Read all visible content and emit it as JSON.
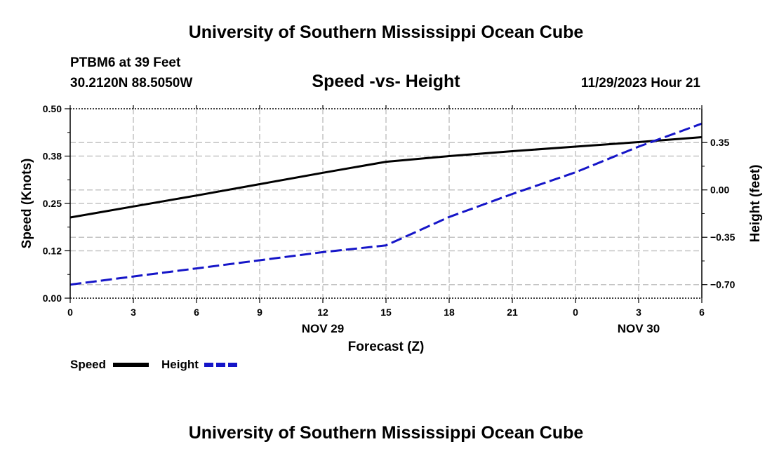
{
  "header": {
    "title": "University of Southern Mississippi Ocean Cube",
    "station": "PTBM6 at 39 Feet",
    "coords": "30.2120N  88.5050W",
    "subtitle": "Speed -vs- Height",
    "datetime": "11/29/2023 Hour 21"
  },
  "footer": {
    "title": "University of Southern Mississippi Ocean Cube"
  },
  "legend": {
    "speed_label": "Speed",
    "height_label": "Height"
  },
  "chart_data": {
    "type": "line",
    "title": "Speed -vs- Height",
    "xlabel": "Forecast (Z)",
    "ylabel": "Speed (Knots)",
    "y2label": "Height (feet)",
    "x": [
      0,
      3,
      6,
      9,
      12,
      15,
      18,
      21,
      24,
      27,
      30
    ],
    "x_tick_labels": [
      "0",
      "3",
      "6",
      "9",
      "12",
      "15",
      "18",
      "21",
      "0",
      "3",
      "6"
    ],
    "x_range": [
      0,
      30
    ],
    "date_labels": [
      {
        "x": 12,
        "label": "NOV 29"
      },
      {
        "x": 27,
        "label": "NOV 30"
      }
    ],
    "ylim": [
      0,
      0.5
    ],
    "y_ticks": [
      0.0,
      0.125,
      0.25,
      0.375,
      0.5
    ],
    "y_tick_labels": [
      "0.00",
      "0.12",
      "0.25",
      "0.38",
      "0.50"
    ],
    "y2lim": [
      -0.8,
      0.6
    ],
    "y2_ticks": [
      -0.7,
      -0.35,
      0.0,
      0.35
    ],
    "y2_tick_labels": [
      "−0.70",
      "−0.35",
      "0.00",
      "0.35"
    ],
    "grid": true,
    "legend_position": "bottom-left",
    "series": [
      {
        "name": "Speed",
        "axis": "left",
        "color": "#000000",
        "style": "solid",
        "values": [
          0.213,
          0.242,
          0.271,
          0.301,
          0.331,
          0.36,
          0.375,
          0.388,
          0.4,
          0.412,
          0.425
        ]
      },
      {
        "name": "Height",
        "axis": "right",
        "color": "#1515c8",
        "style": "dashed",
        "values": [
          -0.7,
          -0.64,
          -0.58,
          -0.52,
          -0.46,
          -0.41,
          -0.2,
          -0.03,
          0.13,
          0.32,
          0.49
        ]
      }
    ]
  }
}
